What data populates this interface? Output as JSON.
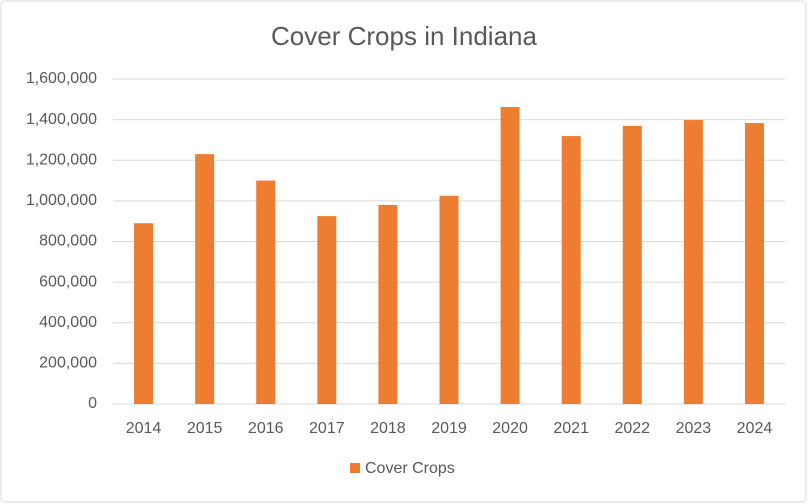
{
  "chart_data": {
    "type": "bar",
    "title": "Cover Crops in Indiana",
    "categories": [
      "2014",
      "2015",
      "2016",
      "2017",
      "2018",
      "2019",
      "2020",
      "2021",
      "2022",
      "2023",
      "2024"
    ],
    "series": [
      {
        "name": "Cover Crops",
        "color": "#ed7d31",
        "values": [
          890000,
          1230000,
          1100000,
          925000,
          980000,
          1025000,
          1462000,
          1319000,
          1369000,
          1398000,
          1383000
        ]
      }
    ],
    "ylim": [
      0,
      1600000
    ],
    "yticks": [
      0,
      {
        "value": 200000,
        "label": "200,000"
      },
      {
        "value": 400000,
        "label": "400,000"
      },
      {
        "value": 600000,
        "label": "600,000"
      },
      {
        "value": 800000,
        "label": "800,000"
      },
      {
        "value": 1000000,
        "label": "1,000,000"
      },
      {
        "value": 1200000,
        "label": "1,200,000"
      },
      {
        "value": 1400000,
        "label": "1,400,000"
      },
      {
        "value": 1600000,
        "label": "1,600,000"
      }
    ],
    "grid": true,
    "legend": "bottom"
  }
}
